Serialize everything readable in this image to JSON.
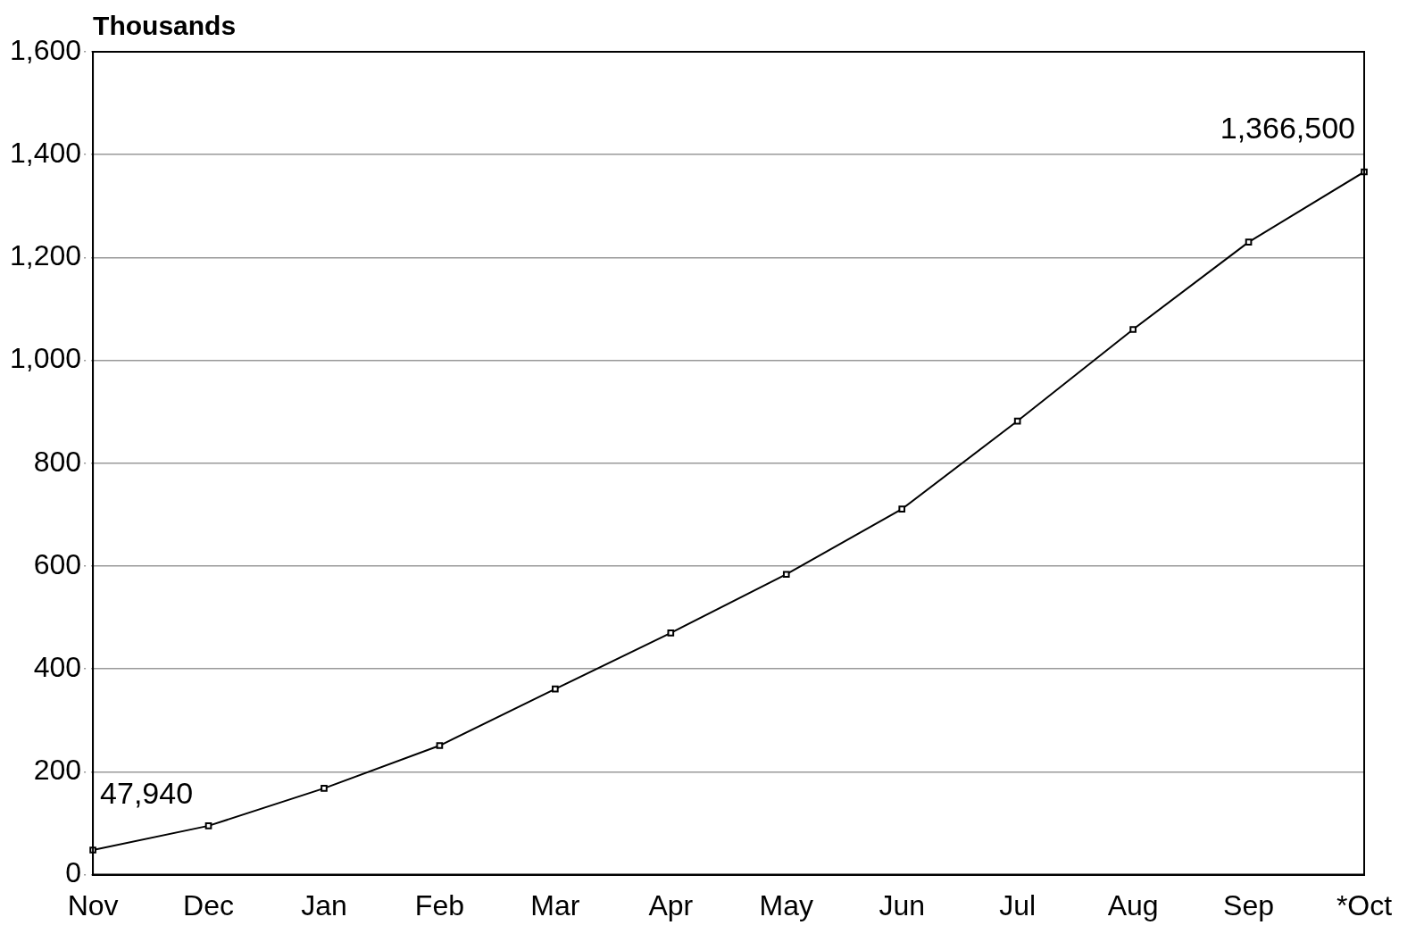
{
  "chart_data": {
    "type": "line",
    "ylabel": "Thousands",
    "categories": [
      "Nov",
      "Dec",
      "Jan",
      "Feb",
      "Mar",
      "Apr",
      "May",
      "Jun",
      "Jul",
      "Aug",
      "Sep",
      "*Oct"
    ],
    "series": [
      {
        "color": "#000000",
        "values": [
          47.94,
          95,
          168,
          251,
          361,
          470,
          584,
          711,
          882,
          1060,
          1230,
          1366.5
        ]
      }
    ],
    "ylim": [
      0,
      1600
    ],
    "yticks": [
      0,
      {
        "value": 200,
        "label": "200"
      },
      {
        "value": 400,
        "label": "400"
      },
      {
        "value": 600,
        "label": "600"
      },
      {
        "value": 800,
        "label": "800"
      },
      {
        "value": 1000,
        "label": "1,000"
      },
      {
        "value": 1200,
        "label": "1,200"
      },
      {
        "value": 1400,
        "label": "1,400"
      },
      {
        "value": 1600,
        "label": "1,600"
      }
    ],
    "grid": "y",
    "marker": "square",
    "line_style": "solid",
    "legend": false,
    "annotations": [
      {
        "text": "47,940",
        "x": "Nov",
        "y": 47.94
      },
      {
        "text": "1,366,500",
        "x": "*Oct",
        "y": 1366.5
      }
    ]
  }
}
